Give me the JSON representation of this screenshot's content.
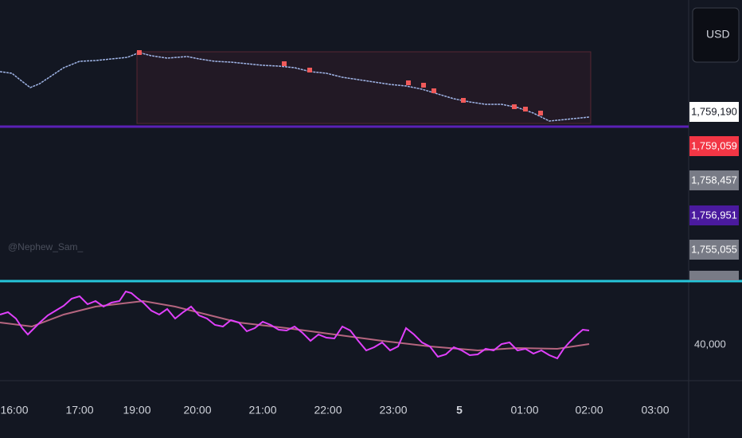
{
  "currency": "USD",
  "watermark": "@Nephew_Sam_",
  "price_labels": [
    "1,759,190",
    "1,759,059",
    "1,758,457",
    "1,756,951",
    "1,755,055"
  ],
  "indicator_axis_label": "40,000",
  "time_axis": [
    "16:00",
    "17:00",
    "19:00",
    "20:00",
    "21:00",
    "22:00",
    "23:00",
    "5",
    "01:00",
    "02:00",
    "03:00"
  ]
}
